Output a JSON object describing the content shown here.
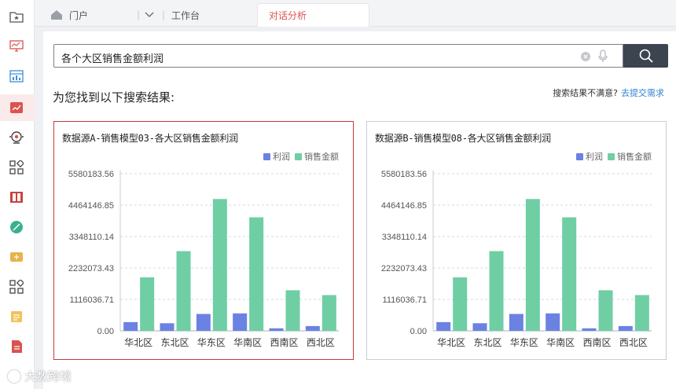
{
  "topbar": {
    "tabs": [
      {
        "label": "门户"
      },
      {
        "label": "工作台"
      },
      {
        "label": "对话分析"
      }
    ]
  },
  "search": {
    "value": "各个大区销售金额利润"
  },
  "results": {
    "title": "为您找到以下搜索结果:",
    "feedback_prompt": "搜索结果不满意?",
    "feedback_link": "去提交需求"
  },
  "colors": {
    "profit": "#6b82e3",
    "sales": "#6fcea4",
    "accent": "#c53a3a"
  },
  "legend": {
    "profit": "利润",
    "sales": "销售金额"
  },
  "chart_data": [
    {
      "type": "bar",
      "title": "数据源A-销售模型03-各大区销售金额利润",
      "categories": [
        "华北区",
        "东北区",
        "华东区",
        "华南区",
        "西南区",
        "西北区"
      ],
      "series": [
        {
          "name": "利润",
          "values": [
            310000,
            270000,
            600000,
            620000,
            90000,
            170000
          ]
        },
        {
          "name": "销售金额",
          "values": [
            1900000,
            2830000,
            4680000,
            4030000,
            1440000,
            1270000
          ]
        }
      ],
      "yticks": [
        "0.00",
        "1116036.71",
        "2232073.43",
        "3348110.14",
        "4464146.85",
        "5580183.56"
      ],
      "ylim": [
        0,
        5580183.56
      ],
      "legend_position": "top-right"
    },
    {
      "type": "bar",
      "title": "数据源B-销售模型08-各大区销售金额利润",
      "categories": [
        "华北区",
        "东北区",
        "华东区",
        "华南区",
        "西南区",
        "西北区"
      ],
      "series": [
        {
          "name": "利润",
          "values": [
            310000,
            270000,
            600000,
            620000,
            90000,
            170000
          ]
        },
        {
          "name": "销售金额",
          "values": [
            1900000,
            2830000,
            4680000,
            4030000,
            1440000,
            1270000
          ]
        }
      ],
      "yticks": [
        "0.00",
        "1116036.71",
        "2232073.43",
        "3348110.14",
        "4464146.85",
        "5580183.56"
      ],
      "ylim": [
        0,
        5580183.56
      ],
      "legend_position": "top-right"
    }
  ],
  "watermark": {
    "text": "大数跨境"
  }
}
